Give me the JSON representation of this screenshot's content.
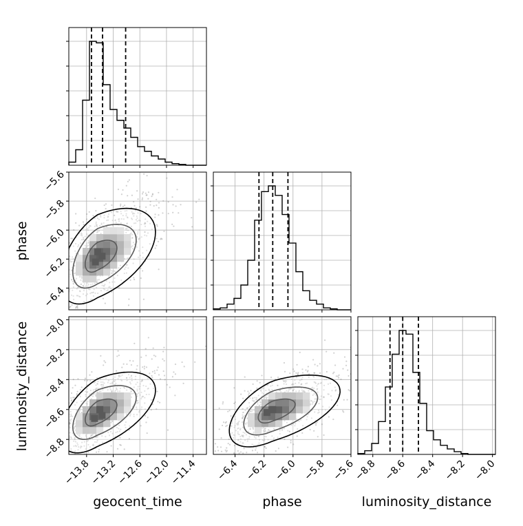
{
  "chart_data": {
    "type": "corner",
    "parameters": [
      "geocent_time",
      "phase",
      "luminosity_distance"
    ],
    "axis_labels": {
      "geocent_time": "geocent_time",
      "phase": "phase",
      "luminosity_distance": "luminosity_distance"
    },
    "grid": true,
    "colors": {
      "hist": "#000000",
      "contour": "#000000",
      "grid": "#b0b0b0",
      "density_dark": "#000000",
      "density_light": "#c8c8c8"
    },
    "ranges": {
      "geocent_time": [
        -14.2,
        -11.1
      ],
      "phase": [
        -6.55,
        -5.6
      ],
      "luminosity_distance": [
        -8.9,
        -7.98
      ]
    },
    "ticks": {
      "geocent_time": [
        -13.8,
        -13.2,
        -12.6,
        -12.0,
        -11.4
      ],
      "phase": [
        -6.4,
        -6.2,
        -6.0,
        -5.8,
        -5.6
      ],
      "luminosity_distance": [
        -8.8,
        -8.6,
        -8.4,
        -8.2,
        -8.0
      ]
    },
    "tick_labels": {
      "geocent_time": [
        "−13.8",
        "−13.2",
        "−12.6",
        "−12.0",
        "−11.4"
      ],
      "phase": [
        "−6.4",
        "−6.2",
        "−6.0",
        "−5.8",
        "−5.6"
      ],
      "luminosity_distance": [
        "−8.8",
        "−8.6",
        "−8.4",
        "−8.2",
        "−8.0"
      ]
    },
    "marginals": [
      {
        "parameter": "geocent_time",
        "quantiles": [
          -13.69,
          -13.44,
          -12.92
        ],
        "edges": [
          -14.2,
          -14.045,
          -13.89,
          -13.735,
          -13.58,
          -13.425,
          -13.27,
          -13.115,
          -12.96,
          -12.805,
          -12.65,
          -12.495,
          -12.34,
          -12.185,
          -12.03,
          -11.875,
          -11.72,
          -11.565,
          -11.41,
          -11.255,
          -11.1
        ],
        "counts": [
          2,
          10,
          42,
          80,
          79,
          52,
          36,
          29,
          24,
          18,
          12,
          9,
          6,
          4,
          2,
          1,
          0.5,
          0,
          0,
          0
        ]
      },
      {
        "parameter": "phase",
        "quantiles": [
          -6.235,
          -6.14,
          -6.035
        ],
        "edges": [
          -6.55,
          -6.5025,
          -6.455,
          -6.4075,
          -6.36,
          -6.3125,
          -6.265,
          -6.2175,
          -6.17,
          -6.1225,
          -6.075,
          -6.0275,
          -5.98,
          -5.9325,
          -5.885,
          -5.8375,
          -5.79,
          -5.7425,
          -5.695,
          -5.6475,
          -5.6
        ],
        "counts": [
          0.5,
          1,
          3,
          6,
          13,
          26,
          47,
          62,
          65,
          60,
          50,
          35,
          20,
          10,
          5,
          3,
          1,
          0.5,
          0,
          0
        ]
      },
      {
        "parameter": "luminosity_distance",
        "quantiles": [
          -8.685,
          -8.6,
          -8.495
        ],
        "edges": [
          -8.9,
          -8.854,
          -8.808,
          -8.762,
          -8.716,
          -8.67,
          -8.624,
          -8.578,
          -8.532,
          -8.486,
          -8.44,
          -8.394,
          -8.348,
          -8.302,
          -8.256,
          -8.21,
          -8.164,
          -8.118,
          -8.072,
          -8.026,
          -7.98
        ],
        "counts": [
          0.5,
          2,
          6,
          18,
          37,
          55,
          68,
          66,
          45,
          28,
          13,
          8,
          5,
          3,
          1.5,
          0.5,
          0,
          0,
          0,
          0
        ]
      }
    ],
    "joint_panels": [
      {
        "x": "geocent_time",
        "y": "phase",
        "center": [
          -13.55,
          -6.18
        ],
        "spread": [
          0.28,
          0.11
        ],
        "correlation": 0.5,
        "contour_levels": [
          1.0,
          2.0,
          3.0
        ],
        "peak_bins": [
          [
            -13.55,
            -6.15
          ],
          [
            -13.45,
            -6.18
          ],
          [
            -13.6,
            -6.22
          ]
        ]
      },
      {
        "x": "geocent_time",
        "y": "luminosity_distance",
        "center": [
          -13.55,
          -8.62
        ],
        "spread": [
          0.28,
          0.09
        ],
        "correlation": 0.55,
        "contour_levels": [
          1.0,
          2.0,
          3.0
        ],
        "peak_bins": [
          [
            -13.5,
            -8.6
          ],
          [
            -13.62,
            -8.66
          ],
          [
            -13.45,
            -8.64
          ]
        ]
      },
      {
        "x": "phase",
        "y": "luminosity_distance",
        "center": [
          -6.14,
          -8.61
        ],
        "spread": [
          0.1,
          0.08
        ],
        "correlation": 0.55,
        "contour_levels": [
          1.0,
          2.0,
          3.0
        ],
        "peak_bins": [
          [
            -6.18,
            -8.62
          ],
          [
            -6.14,
            -8.6
          ]
        ]
      }
    ]
  }
}
